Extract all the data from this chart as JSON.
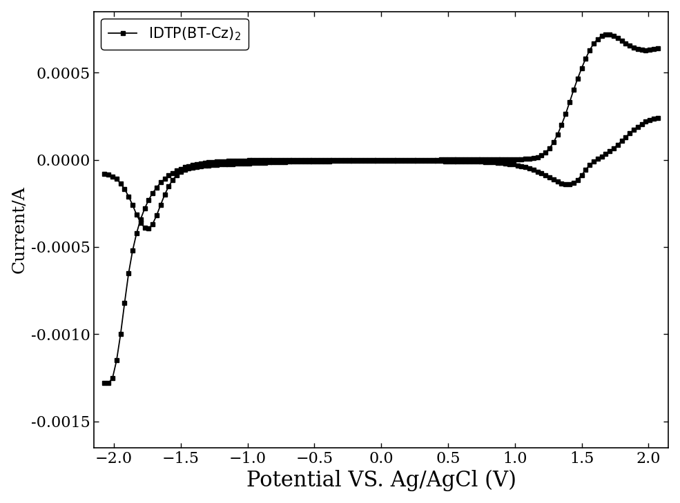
{
  "title": "",
  "xlabel": "Potential VS. Ag/AgCl (V)",
  "ylabel": "Current/A",
  "legend_label": "IDTP(BT-Cz)$_2$",
  "xlim": [
    -2.15,
    2.15
  ],
  "ylim": [
    -0.00165,
    0.00085
  ],
  "xticks": [
    -2.0,
    -1.5,
    -1.0,
    -0.5,
    0.0,
    0.5,
    1.0,
    1.5,
    2.0
  ],
  "yticks": [
    -0.0015,
    -0.001,
    -0.0005,
    0.0,
    0.0005
  ],
  "background_color": "#ffffff",
  "line_color": "#000000",
  "marker": "s",
  "markersize": 5,
  "linewidth": 1.3,
  "xlabel_fontsize": 22,
  "ylabel_fontsize": 18,
  "tick_fontsize": 16,
  "legend_fontsize": 15,
  "cv_forward": [
    [
      -2.07,
      -0.00128
    ],
    [
      -2.04,
      -0.00128
    ],
    [
      -2.01,
      -0.00125
    ],
    [
      -1.98,
      -0.00115
    ],
    [
      -1.95,
      -0.001
    ],
    [
      -1.92,
      -0.00082
    ],
    [
      -1.89,
      -0.00065
    ],
    [
      -1.86,
      -0.00052
    ],
    [
      -1.83,
      -0.00042
    ],
    [
      -1.8,
      -0.00034
    ],
    [
      -1.77,
      -0.00028
    ],
    [
      -1.74,
      -0.00023
    ],
    [
      -1.71,
      -0.00019
    ],
    [
      -1.68,
      -0.00016
    ],
    [
      -1.65,
      -0.00013
    ],
    [
      -1.62,
      -0.00011
    ],
    [
      -1.59,
      -9e-05
    ],
    [
      -1.56,
      -7.5e-05
    ],
    [
      -1.53,
      -6.2e-05
    ],
    [
      -1.5,
      -5.2e-05
    ],
    [
      -1.47,
      -4.3e-05
    ],
    [
      -1.44,
      -3.6e-05
    ],
    [
      -1.41,
      -3e-05
    ],
    [
      -1.38,
      -2.5e-05
    ],
    [
      -1.35,
      -2.1e-05
    ],
    [
      -1.32,
      -1.8e-05
    ],
    [
      -1.29,
      -1.5e-05
    ],
    [
      -1.26,
      -1.3e-05
    ],
    [
      -1.23,
      -1.1e-05
    ],
    [
      -1.2,
      -9e-06
    ],
    [
      -1.17,
      -8e-06
    ],
    [
      -1.14,
      -7e-06
    ],
    [
      -1.11,
      -6e-06
    ],
    [
      -1.08,
      -5e-06
    ],
    [
      -1.05,
      -5e-06
    ],
    [
      -1.02,
      -4e-06
    ],
    [
      -0.99,
      -3e-06
    ],
    [
      -0.96,
      -3e-06
    ],
    [
      -0.93,
      -2e-06
    ],
    [
      -0.9,
      -2e-06
    ],
    [
      -0.87,
      -2e-06
    ],
    [
      -0.84,
      -1e-06
    ],
    [
      -0.81,
      -1e-06
    ],
    [
      -0.78,
      -1e-06
    ],
    [
      -0.75,
      -1e-06
    ],
    [
      -0.72,
      0.0
    ],
    [
      -0.69,
      0.0
    ],
    [
      -0.66,
      0.0
    ],
    [
      -0.63,
      0.0
    ],
    [
      -0.6,
      1e-07
    ],
    [
      -0.57,
      1e-07
    ],
    [
      -0.54,
      1e-07
    ],
    [
      -0.51,
      1e-07
    ],
    [
      -0.48,
      2e-07
    ],
    [
      -0.45,
      2e-07
    ],
    [
      -0.42,
      2e-07
    ],
    [
      -0.39,
      2e-07
    ],
    [
      -0.36,
      2e-07
    ],
    [
      -0.33,
      2e-07
    ],
    [
      -0.3,
      2e-07
    ],
    [
      -0.27,
      2e-07
    ],
    [
      -0.24,
      2e-07
    ],
    [
      -0.21,
      2e-07
    ],
    [
      -0.18,
      2e-07
    ],
    [
      -0.15,
      2e-07
    ],
    [
      -0.12,
      2e-07
    ],
    [
      -0.09,
      2e-07
    ],
    [
      -0.06,
      2e-07
    ],
    [
      -0.03,
      2e-07
    ],
    [
      0.0,
      2e-07
    ],
    [
      0.03,
      2e-07
    ],
    [
      0.06,
      2e-07
    ],
    [
      0.09,
      2e-07
    ],
    [
      0.12,
      2e-07
    ],
    [
      0.15,
      2e-07
    ],
    [
      0.18,
      2e-07
    ],
    [
      0.21,
      2e-07
    ],
    [
      0.24,
      2e-07
    ],
    [
      0.27,
      2e-07
    ],
    [
      0.3,
      2e-07
    ],
    [
      0.33,
      2e-07
    ],
    [
      0.36,
      2e-07
    ],
    [
      0.39,
      2e-07
    ],
    [
      0.42,
      2e-07
    ],
    [
      0.45,
      3e-07
    ],
    [
      0.48,
      3e-07
    ],
    [
      0.51,
      3e-07
    ],
    [
      0.54,
      3e-07
    ],
    [
      0.57,
      3e-07
    ],
    [
      0.6,
      3e-07
    ],
    [
      0.63,
      3e-07
    ],
    [
      0.66,
      4e-07
    ],
    [
      0.69,
      4e-07
    ],
    [
      0.72,
      4e-07
    ],
    [
      0.75,
      5e-07
    ],
    [
      0.78,
      5e-07
    ],
    [
      0.81,
      6e-07
    ],
    [
      0.84,
      7e-07
    ],
    [
      0.87,
      8e-07
    ],
    [
      0.9,
      9e-07
    ],
    [
      0.93,
      1.1e-06
    ],
    [
      0.96,
      1.4e-06
    ],
    [
      0.99,
      1.8e-06
    ],
    [
      1.02,
      2.3e-06
    ],
    [
      1.05,
      3.2e-06
    ],
    [
      1.08,
      4.8e-06
    ],
    [
      1.11,
      7e-06
    ],
    [
      1.14,
      1e-05
    ],
    [
      1.17,
      1.6e-05
    ],
    [
      1.2,
      2.6e-05
    ],
    [
      1.23,
      4.2e-05
    ],
    [
      1.26,
      6.6e-05
    ],
    [
      1.29,
      0.0001
    ],
    [
      1.32,
      0.000145
    ],
    [
      1.35,
      0.0002
    ],
    [
      1.38,
      0.000262
    ],
    [
      1.41,
      0.00033
    ],
    [
      1.44,
      0.0004
    ],
    [
      1.47,
      0.000465
    ],
    [
      1.5,
      0.000525
    ],
    [
      1.53,
      0.00058
    ],
    [
      1.56,
      0.000628
    ],
    [
      1.59,
      0.000666
    ],
    [
      1.62,
      0.000692
    ],
    [
      1.65,
      0.00071
    ],
    [
      1.68,
      0.000718
    ],
    [
      1.71,
      0.000718
    ],
    [
      1.74,
      0.000712
    ],
    [
      1.77,
      0.0007
    ],
    [
      1.8,
      0.000684
    ],
    [
      1.83,
      0.000668
    ],
    [
      1.86,
      0.000654
    ],
    [
      1.89,
      0.000642
    ],
    [
      1.92,
      0.000634
    ],
    [
      1.95,
      0.00063
    ],
    [
      1.98,
      0.000628
    ],
    [
      2.01,
      0.00063
    ],
    [
      2.04,
      0.000635
    ],
    [
      2.07,
      0.00064
    ]
  ],
  "cv_backward": [
    [
      2.07,
      0.00024
    ],
    [
      2.04,
      0.000235
    ],
    [
      2.01,
      0.000228
    ],
    [
      1.98,
      0.000218
    ],
    [
      1.95,
      0.000205
    ],
    [
      1.92,
      0.00019
    ],
    [
      1.89,
      0.000172
    ],
    [
      1.86,
      0.000152
    ],
    [
      1.83,
      0.00013
    ],
    [
      1.8,
      0.000108
    ],
    [
      1.77,
      8.6e-05
    ],
    [
      1.74,
      6.6e-05
    ],
    [
      1.71,
      4.8e-05
    ],
    [
      1.68,
      3.2e-05
    ],
    [
      1.65,
      1.8e-05
    ],
    [
      1.62,
      5e-06
    ],
    [
      1.59,
      -1e-05
    ],
    [
      1.56,
      -3e-05
    ],
    [
      1.53,
      -5.8e-05
    ],
    [
      1.5,
      -8.8e-05
    ],
    [
      1.47,
      -0.000115
    ],
    [
      1.44,
      -0.000134
    ],
    [
      1.41,
      -0.000142
    ],
    [
      1.38,
      -0.000142
    ],
    [
      1.35,
      -0.000135
    ],
    [
      1.32,
      -0.000124
    ],
    [
      1.29,
      -0.000112
    ],
    [
      1.26,
      -0.0001
    ],
    [
      1.23,
      -8.9e-05
    ],
    [
      1.2,
      -7.8e-05
    ],
    [
      1.17,
      -6.8e-05
    ],
    [
      1.14,
      -5.8e-05
    ],
    [
      1.11,
      -5e-05
    ],
    [
      1.08,
      -4.3e-05
    ],
    [
      1.05,
      -3.7e-05
    ],
    [
      1.02,
      -3.2e-05
    ],
    [
      0.99,
      -2.7e-05
    ],
    [
      0.96,
      -2.4e-05
    ],
    [
      0.93,
      -2.1e-05
    ],
    [
      0.9,
      -1.8e-05
    ],
    [
      0.87,
      -1.6e-05
    ],
    [
      0.84,
      -1.5e-05
    ],
    [
      0.81,
      -1.3e-05
    ],
    [
      0.78,
      -1.2e-05
    ],
    [
      0.75,
      -1.1e-05
    ],
    [
      0.72,
      -1e-05
    ],
    [
      0.69,
      -1e-05
    ],
    [
      0.66,
      -9e-06
    ],
    [
      0.63,
      -9e-06
    ],
    [
      0.6,
      -9e-06
    ],
    [
      0.57,
      -8e-06
    ],
    [
      0.54,
      -8e-06
    ],
    [
      0.51,
      -8e-06
    ],
    [
      0.48,
      -8e-06
    ],
    [
      0.45,
      -7e-06
    ],
    [
      0.42,
      -7e-06
    ],
    [
      0.39,
      -7e-06
    ],
    [
      0.36,
      -7e-06
    ],
    [
      0.33,
      -7e-06
    ],
    [
      0.3,
      -7e-06
    ],
    [
      0.27,
      -7e-06
    ],
    [
      0.24,
      -7e-06
    ],
    [
      0.21,
      -7e-06
    ],
    [
      0.18,
      -7e-06
    ],
    [
      0.15,
      -7e-06
    ],
    [
      0.12,
      -7e-06
    ],
    [
      0.09,
      -7e-06
    ],
    [
      0.06,
      -7e-06
    ],
    [
      0.03,
      -7e-06
    ],
    [
      0.0,
      -7e-06
    ],
    [
      -0.03,
      -7e-06
    ],
    [
      -0.06,
      -7e-06
    ],
    [
      -0.09,
      -7e-06
    ],
    [
      -0.12,
      -7e-06
    ],
    [
      -0.15,
      -7e-06
    ],
    [
      -0.18,
      -7e-06
    ],
    [
      -0.21,
      -7e-06
    ],
    [
      -0.24,
      -7e-06
    ],
    [
      -0.27,
      -7e-06
    ],
    [
      -0.3,
      -7e-06
    ],
    [
      -0.33,
      -7e-06
    ],
    [
      -0.36,
      -7e-06
    ],
    [
      -0.39,
      -8e-06
    ],
    [
      -0.42,
      -8e-06
    ],
    [
      -0.45,
      -8e-06
    ],
    [
      -0.48,
      -8e-06
    ],
    [
      -0.51,
      -9e-06
    ],
    [
      -0.54,
      -9e-06
    ],
    [
      -0.57,
      -9e-06
    ],
    [
      -0.6,
      -1e-05
    ],
    [
      -0.63,
      -1e-05
    ],
    [
      -0.66,
      -1.1e-05
    ],
    [
      -0.69,
      -1.1e-05
    ],
    [
      -0.72,
      -1.2e-05
    ],
    [
      -0.75,
      -1.2e-05
    ],
    [
      -0.78,
      -1.3e-05
    ],
    [
      -0.81,
      -1.4e-05
    ],
    [
      -0.84,
      -1.5e-05
    ],
    [
      -0.87,
      -1.6e-05
    ],
    [
      -0.9,
      -1.7e-05
    ],
    [
      -0.93,
      -1.8e-05
    ],
    [
      -0.96,
      -1.9e-05
    ],
    [
      -0.99,
      -2e-05
    ],
    [
      -1.02,
      -2.1e-05
    ],
    [
      -1.05,
      -2.2e-05
    ],
    [
      -1.08,
      -2.3e-05
    ],
    [
      -1.11,
      -2.4e-05
    ],
    [
      -1.14,
      -2.5e-05
    ],
    [
      -1.17,
      -2.6e-05
    ],
    [
      -1.2,
      -2.7e-05
    ],
    [
      -1.23,
      -2.8e-05
    ],
    [
      -1.26,
      -3e-05
    ],
    [
      -1.29,
      -3.2e-05
    ],
    [
      -1.32,
      -3.4e-05
    ],
    [
      -1.35,
      -3.7e-05
    ],
    [
      -1.38,
      -4e-05
    ],
    [
      -1.41,
      -4.4e-05
    ],
    [
      -1.44,
      -5e-05
    ],
    [
      -1.47,
      -5.8e-05
    ],
    [
      -1.5,
      -7e-05
    ],
    [
      -1.53,
      -8.8e-05
    ],
    [
      -1.56,
      -0.000115
    ],
    [
      -1.59,
      -0.000152
    ],
    [
      -1.62,
      -0.0002
    ],
    [
      -1.65,
      -0.000258
    ],
    [
      -1.68,
      -0.000318
    ],
    [
      -1.71,
      -0.000368
    ],
    [
      -1.74,
      -0.000395
    ],
    [
      -1.77,
      -0.00039
    ],
    [
      -1.8,
      -0.00036
    ],
    [
      -1.83,
      -0.000315
    ],
    [
      -1.86,
      -0.00026
    ],
    [
      -1.89,
      -0.00021
    ],
    [
      -1.92,
      -0.000168
    ],
    [
      -1.95,
      -0.000135
    ],
    [
      -1.98,
      -0.00011
    ],
    [
      -2.01,
      -9.5e-05
    ],
    [
      -2.04,
      -8.5e-05
    ],
    [
      -2.07,
      -8e-05
    ]
  ]
}
